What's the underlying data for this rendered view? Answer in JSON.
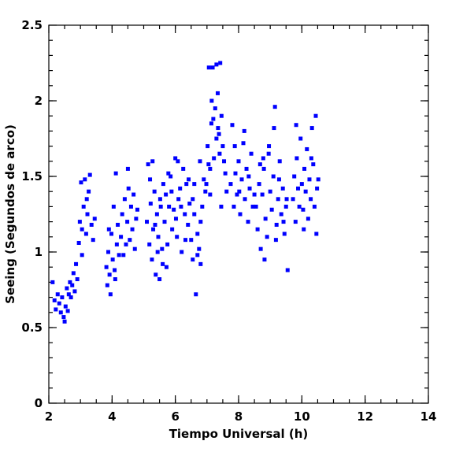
{
  "chart_data": {
    "type": "scatter",
    "xlabel": "Tiempo Universal (h)",
    "ylabel": "Seeing (Segundos de arco)",
    "xlim": [
      2,
      14
    ],
    "ylim": [
      0,
      2.5
    ],
    "xticks": [
      2,
      4,
      6,
      8,
      10,
      12,
      14
    ],
    "yticks": [
      0,
      0.5,
      1,
      1.5,
      2,
      2.5
    ],
    "xminor_step": 0.5,
    "yminor_step": 0.1,
    "color": "#0000ff",
    "x": [
      2.12,
      2.18,
      2.22,
      2.28,
      2.33,
      2.38,
      2.42,
      2.47,
      2.5,
      2.53,
      2.57,
      2.6,
      2.63,
      2.67,
      2.7,
      2.74,
      2.78,
      2.82,
      2.86,
      2.9,
      2.95,
      2.98,
      3.02,
      3.05,
      3.1,
      3.14,
      3.18,
      3.22,
      3.26,
      3.3,
      3.35,
      3.4,
      3.45,
      3.05,
      3.2,
      3.82,
      3.85,
      3.88,
      3.92,
      3.95,
      3.98,
      4.02,
      4.05,
      4.08,
      4.12,
      4.15,
      4.18,
      4.22,
      3.9,
      4.1,
      4.28,
      4.32,
      4.36,
      4.4,
      4.44,
      4.48,
      4.52,
      4.56,
      4.6,
      4.64,
      4.68,
      4.72,
      4.76,
      4.5,
      4.8,
      5.1,
      5.14,
      5.18,
      5.22,
      5.26,
      5.3,
      5.34,
      5.38,
      5.42,
      5.46,
      5.5,
      5.54,
      5.58,
      5.62,
      5.2,
      5.28,
      5.36,
      5.44,
      5.52,
      5.6,
      5.66,
      5.7,
      5.75,
      5.8,
      5.85,
      5.9,
      5.95,
      6.0,
      6.05,
      6.1,
      6.15,
      6.2,
      6.25,
      6.3,
      6.35,
      6.4,
      6.45,
      5.72,
      5.88,
      6.02,
      6.18,
      6.32,
      5.78,
      6.08,
      6.42,
      6.5,
      6.55,
      6.6,
      6.65,
      6.7,
      6.75,
      6.8,
      6.85,
      6.6,
      6.7,
      6.8,
      6.9,
      6.55,
      6.78,
      6.95,
      6.98,
      7.02,
      7.06,
      7.1,
      7.14,
      7.18,
      7.22,
      7.26,
      7.3,
      7.34,
      7.38,
      7.42,
      7.46,
      7.5,
      7.54,
      7.58,
      7.62,
      7.1,
      7.2,
      7.3,
      7.4,
      7.15,
      7.35,
      7.45,
      7.05,
      7.75,
      7.8,
      7.85,
      7.9,
      7.95,
      8.0,
      8.05,
      8.1,
      8.15,
      8.2,
      8.25,
      8.3,
      8.35,
      8.4,
      8.45,
      7.88,
      8.02,
      8.18,
      8.32,
      8.5,
      8.55,
      8.6,
      8.65,
      8.7,
      8.75,
      8.8,
      8.85,
      8.9,
      8.95,
      9.0,
      9.05,
      9.1,
      9.15,
      9.2,
      9.25,
      9.3,
      9.35,
      9.4,
      9.45,
      9.5,
      9.55,
      8.68,
      8.82,
      8.96,
      9.12,
      9.28,
      9.42,
      9.52,
      9.18,
      8.78,
      9.72,
      9.76,
      9.8,
      9.84,
      9.88,
      9.92,
      9.96,
      10.0,
      10.04,
      10.08,
      10.12,
      10.16,
      10.2,
      10.24,
      10.28,
      10.32,
      10.36,
      10.4,
      10.44,
      10.48,
      10.52,
      9.82,
      10.06,
      10.3,
      10.46
    ],
    "values": [
      0.8,
      0.68,
      0.62,
      0.72,
      0.66,
      0.6,
      0.7,
      0.57,
      0.54,
      0.64,
      0.76,
      0.61,
      0.72,
      0.8,
      0.7,
      0.78,
      0.86,
      0.74,
      0.92,
      0.82,
      1.06,
      1.2,
      1.46,
      1.15,
      1.3,
      1.48,
      1.12,
      1.25,
      1.4,
      1.51,
      1.18,
      1.08,
      1.22,
      0.98,
      1.35,
      0.9,
      0.78,
      1.0,
      0.85,
      0.72,
      1.12,
      0.95,
      1.3,
      0.88,
      1.52,
      1.05,
      1.18,
      0.98,
      1.15,
      0.82,
      1.1,
      1.25,
      0.98,
      1.35,
      1.05,
      1.2,
      1.42,
      1.08,
      1.3,
      1.15,
      1.38,
      1.02,
      1.22,
      1.55,
      1.28,
      1.2,
      1.58,
      1.05,
      1.32,
      0.95,
      1.15,
      1.4,
      0.85,
      1.25,
      1.1,
      0.82,
      1.3,
      1.02,
      1.45,
      1.48,
      1.6,
      1.18,
      1.0,
      1.35,
      0.92,
      1.2,
      1.38,
      1.05,
      1.3,
      1.5,
      1.15,
      1.28,
      1.62,
      1.1,
      1.35,
      1.42,
      1.0,
      1.55,
      1.25,
      1.45,
      1.18,
      1.32,
      0.9,
      1.4,
      1.22,
      1.3,
      1.08,
      1.52,
      1.6,
      1.48,
      1.08,
      0.95,
      1.25,
      0.72,
      1.12,
      1.02,
      0.92,
      1.3,
      1.45,
      0.98,
      1.2,
      1.48,
      1.35,
      1.6,
      1.4,
      1.45,
      1.7,
      2.22,
      1.55,
      1.85,
      2.22,
      1.62,
      1.95,
      2.24,
      2.05,
      1.78,
      2.25,
      1.9,
      1.7,
      1.6,
      1.52,
      1.4,
      1.38,
      1.88,
      1.75,
      1.65,
      2.0,
      1.82,
      1.3,
      1.58,
      1.45,
      1.84,
      1.3,
      1.52,
      1.38,
      1.6,
      1.25,
      1.48,
      1.72,
      1.35,
      1.55,
      1.2,
      1.42,
      1.65,
      1.3,
      1.7,
      1.4,
      1.8,
      1.5,
      1.38,
      1.3,
      1.15,
      1.45,
      1.02,
      1.38,
      1.55,
      1.22,
      1.1,
      1.65,
      1.4,
      1.28,
      1.5,
      1.96,
      1.18,
      1.35,
      1.6,
      1.25,
      1.42,
      1.12,
      1.3,
      0.88,
      1.58,
      0.95,
      1.7,
      1.82,
      1.48,
      1.2,
      1.35,
      1.08,
      1.62,
      1.35,
      1.5,
      1.2,
      1.62,
      1.42,
      1.3,
      1.75,
      1.45,
      1.28,
      1.55,
      1.4,
      1.68,
      1.22,
      1.48,
      1.35,
      1.82,
      1.58,
      1.3,
      1.9,
      1.42,
      1.48,
      1.84,
      1.15,
      1.62,
      1.12
    ]
  }
}
